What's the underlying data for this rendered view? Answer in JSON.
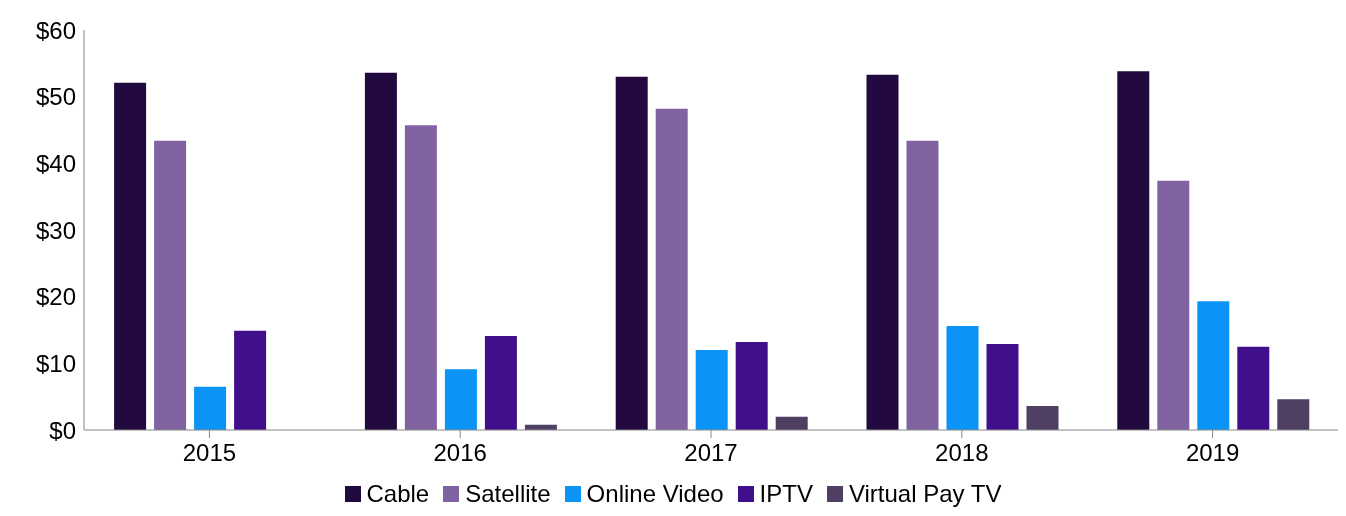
{
  "chart_data": {
    "type": "bar",
    "categories": [
      "2015",
      "2016",
      "2017",
      "2018",
      "2019"
    ],
    "series": [
      {
        "name": "Cable",
        "color": "#22093f",
        "values": [
          52.1,
          53.6,
          53.0,
          53.3,
          53.8
        ]
      },
      {
        "name": "Satellite",
        "color": "#8064a2",
        "values": [
          43.4,
          45.7,
          48.2,
          43.4,
          37.4
        ]
      },
      {
        "name": "Online Video",
        "color": "#0b94f5",
        "values": [
          6.5,
          9.1,
          12.0,
          15.6,
          19.3
        ]
      },
      {
        "name": "IPTV",
        "color": "#40108c",
        "values": [
          14.9,
          14.1,
          13.2,
          12.9,
          12.5
        ]
      },
      {
        "name": "Virtual Pay TV",
        "color": "#4e3f63",
        "values": [
          null,
          0.8,
          2.0,
          3.6,
          4.6
        ]
      }
    ],
    "ylim": [
      0,
      60
    ],
    "yticks": [
      {
        "value": 0,
        "label": "$0"
      },
      {
        "value": 10,
        "label": "$10"
      },
      {
        "value": 20,
        "label": "$20"
      },
      {
        "value": 30,
        "label": "$30"
      },
      {
        "value": 40,
        "label": "$40"
      },
      {
        "value": 50,
        "label": "$50"
      },
      {
        "value": 60,
        "label": "$60"
      }
    ],
    "grid": false,
    "legend": "bottom"
  }
}
